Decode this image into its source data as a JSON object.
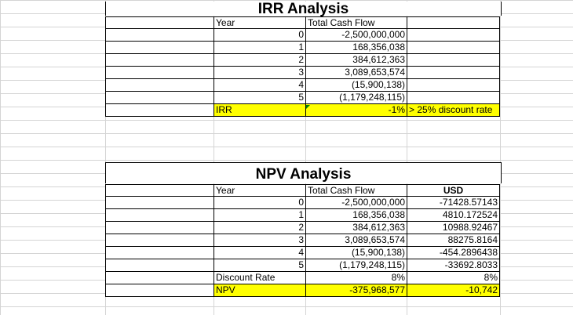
{
  "irr": {
    "title": "IRR Analysis",
    "header": {
      "year": "Year",
      "cash_flow": "Total Cash Flow"
    },
    "rows": [
      {
        "year": "0",
        "cash_flow": "-2,500,000,000"
      },
      {
        "year": "1",
        "cash_flow": "168,356,038"
      },
      {
        "year": "2",
        "cash_flow": "384,612,363"
      },
      {
        "year": "3",
        "cash_flow": "3,089,653,574"
      },
      {
        "year": "4",
        "cash_flow": "(15,900,138)"
      },
      {
        "year": "5",
        "cash_flow": "(1,179,248,115)"
      }
    ],
    "result": {
      "label": "IRR",
      "value": "-1%",
      "note": "> 25% discount rate"
    }
  },
  "npv": {
    "title": "NPV Analysis",
    "header": {
      "year": "Year",
      "cash_flow": "Total Cash Flow",
      "usd": "USD"
    },
    "rows": [
      {
        "year": "0",
        "cash_flow": "-2,500,000,000",
        "usd": "-71428.57143"
      },
      {
        "year": "1",
        "cash_flow": "168,356,038",
        "usd": "4810.172524"
      },
      {
        "year": "2",
        "cash_flow": "384,612,363",
        "usd": "10988.92467"
      },
      {
        "year": "3",
        "cash_flow": "3,089,653,574",
        "usd": "88275.8164"
      },
      {
        "year": "4",
        "cash_flow": "(15,900,138)",
        "usd": "-454.2896438"
      },
      {
        "year": "5",
        "cash_flow": "(1,179,248,115)",
        "usd": "-33692.8033"
      }
    ],
    "discount": {
      "label": "Discount Rate",
      "value": "8%",
      "usd": "8%"
    },
    "result": {
      "label": "NPV",
      "value": "-375,968,577",
      "usd": "-10,742"
    }
  },
  "colors": {
    "highlight": "#ffff00",
    "grid": "#d4d4d4"
  }
}
